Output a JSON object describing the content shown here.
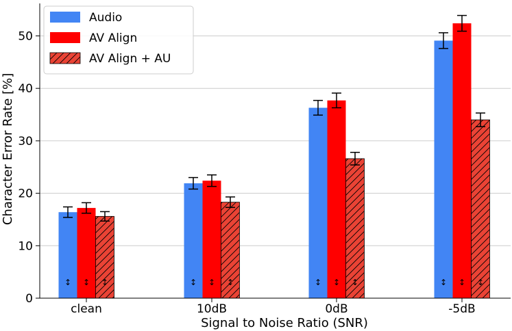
{
  "chart_data": {
    "type": "bar",
    "title": "",
    "xlabel": "Signal to Noise Ratio (SNR)",
    "ylabel": "Character Error Rate [%]",
    "ylim": [
      0,
      55
    ],
    "yticks": [
      0,
      10,
      20,
      30,
      40,
      50
    ],
    "grid": "horizontal",
    "legend_position": "top-left",
    "categories": [
      "clean",
      "10dB",
      "0dB",
      "-5dB"
    ],
    "series": [
      {
        "name": "Audio",
        "color": "#4285f4",
        "pattern": "solid",
        "values": [
          16.4,
          21.9,
          36.3,
          49.1
        ],
        "errors": [
          1.0,
          1.1,
          1.4,
          1.5
        ]
      },
      {
        "name": "AV Align",
        "color": "#ff0000",
        "pattern": "solid",
        "values": [
          17.2,
          22.4,
          37.7,
          52.4
        ],
        "errors": [
          1.0,
          1.1,
          1.4,
          1.5
        ]
      },
      {
        "name": "AV Align + AU",
        "color": "#ea4335",
        "pattern": "hatch",
        "values": [
          15.6,
          18.3,
          26.6,
          34.0
        ],
        "errors": [
          0.9,
          1.0,
          1.2,
          1.3
        ]
      }
    ],
    "annotation_glyph": "↕"
  }
}
